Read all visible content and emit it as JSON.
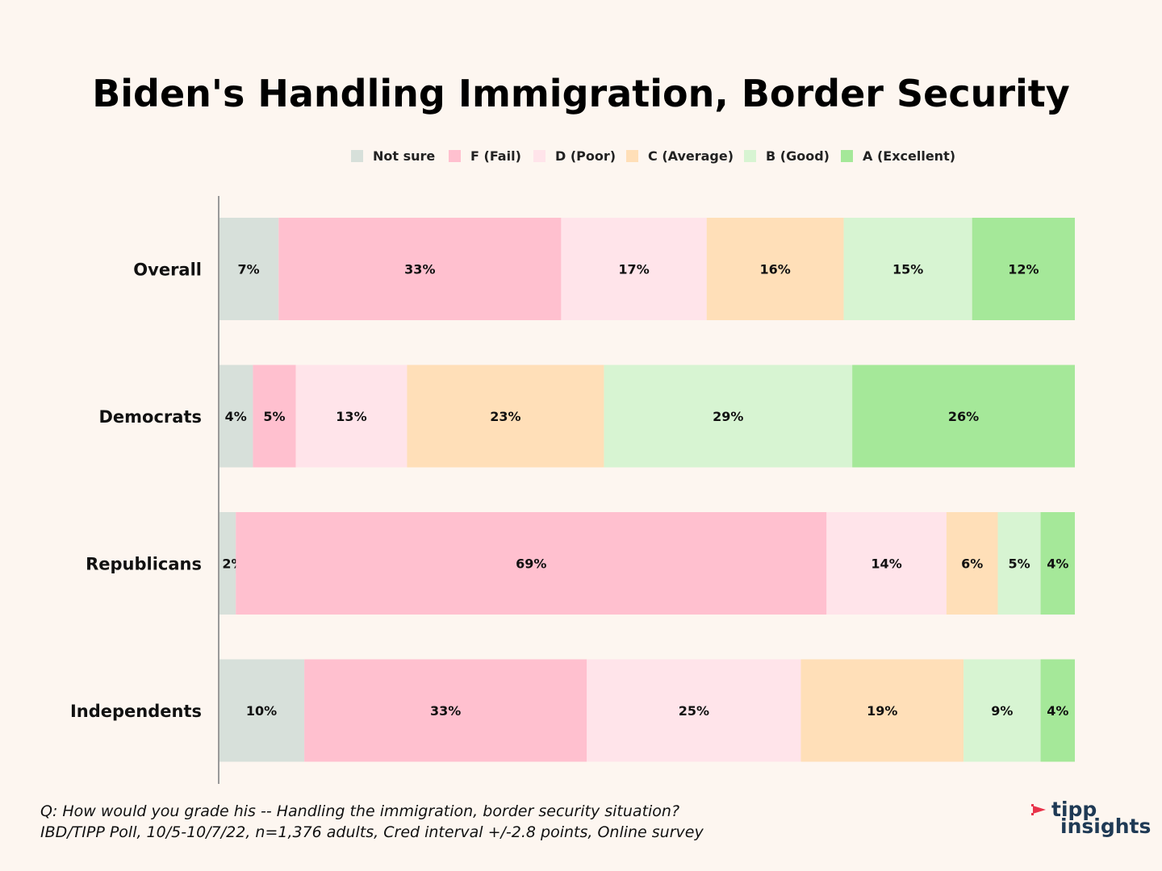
{
  "chart_data": {
    "type": "bar",
    "orientation": "horizontal",
    "stacked": true,
    "percent": true,
    "title": "Biden's Handling Immigration, Border Security",
    "categories": [
      "Overall",
      "Democrats",
      "Republicans",
      "Independents"
    ],
    "series": [
      {
        "name": "Not sure",
        "color": "#d7e0da",
        "values": [
          7,
          4,
          2,
          10
        ]
      },
      {
        "name": "F (Fail)",
        "color": "#ffc0cf",
        "values": [
          33,
          5,
          69,
          33
        ]
      },
      {
        "name": "D (Poor)",
        "color": "#ffe4ea",
        "values": [
          17,
          13,
          14,
          25
        ]
      },
      {
        "name": "C (Average)",
        "color": "#ffdfb8",
        "values": [
          16,
          23,
          6,
          19
        ]
      },
      {
        "name": "B (Good)",
        "color": "#d7f4d2",
        "values": [
          15,
          29,
          5,
          9
        ]
      },
      {
        "name": "A (Excellent)",
        "color": "#a5e899",
        "values": [
          12,
          26,
          4,
          4
        ]
      }
    ],
    "value_suffix": "%",
    "legend_position": "top-center",
    "grid": false
  },
  "footnote": {
    "line1": "Q:  How would you grade his -- Handling the immigration, border security situation?",
    "line2": "IBD/TIPP Poll, 10/5-10/7/22, n=1,376 adults, Cred interval +/-2.8 points, Online survey"
  },
  "logo": {
    "line1": "tipp",
    "line2": "insights",
    "color": "#1f3a55",
    "accent": "#e8334a"
  },
  "colors": {
    "background": "#fdf6f0",
    "axis": "#9a9a9a"
  }
}
